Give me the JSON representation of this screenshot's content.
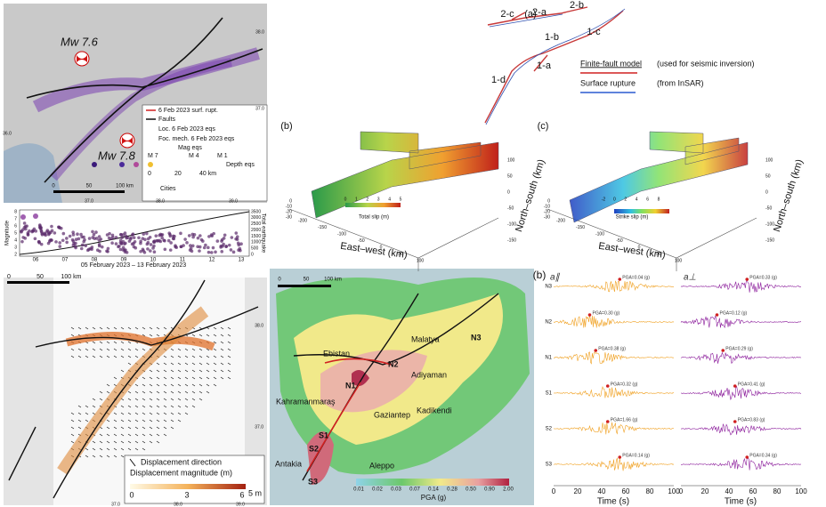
{
  "overview_map": {
    "events": [
      "Mw 7.6",
      "Mw 7.8"
    ],
    "legend": [
      "6 Feb 2023 surf. rupt.",
      "Faults",
      "Loc. 6 Feb 2023 eqs",
      "Foc. mech. 6 Feb 2023 eqs",
      "Mag eqs",
      "M 7",
      "M 4",
      "M 1",
      "Depth eqs",
      "0",
      "20",
      "40 km",
      "Cities"
    ],
    "scale": [
      "0",
      "50",
      "100 km"
    ],
    "coords": [
      "38.0",
      "37.0",
      "36.0",
      "37.0",
      "38.0",
      "39.0"
    ]
  },
  "timeline": {
    "y_label": "Magnitude",
    "y2_label": "Total earthquake",
    "yticks": [
      "8",
      "7",
      "6",
      "5",
      "4",
      "3",
      "2"
    ],
    "y2ticks": [
      "3500",
      "3000",
      "2500",
      "2000",
      "1500",
      "1000",
      "500",
      "0"
    ],
    "xticks": [
      "06",
      "07",
      "08",
      "09",
      "10",
      "11",
      "12",
      "13"
    ],
    "caption": "05 February 2023 – 13 February 2023"
  },
  "displacement_map": {
    "scale": [
      "0",
      "50",
      "100 km"
    ],
    "legend_direction": "Displacement direction",
    "legend_magnitude": "Displacement magnitude (m)",
    "colorbar": [
      "0",
      "3",
      "6"
    ],
    "arrow_scale": "5 m",
    "coords": [
      "38.0",
      "37.0",
      "37.0",
      "38.0",
      "39.0"
    ]
  },
  "pga_map": {
    "scale": [
      "0",
      "50",
      "100 km"
    ],
    "places": [
      "Ebistan",
      "Malatya",
      "N3",
      "N2",
      "N1",
      "Adiyaman",
      "Kahramanmaraş",
      "Gaziantep",
      "Kadikendi",
      "S1",
      "S2",
      "S3",
      "Antakia",
      "Aleppo"
    ],
    "colorbar": [
      "0.01",
      "0.02",
      "0.03",
      "0.07",
      "0.14",
      "0.28",
      "0.50",
      "0.90",
      "2.00"
    ],
    "colorbar_label": "PGA (g)"
  },
  "fault_model": {
    "panel": "(a)",
    "segments": [
      "2-c",
      "2-a",
      "2-b",
      "1-b",
      "1-c",
      "1-a",
      "1-d"
    ],
    "legend": [
      "Finite-fault model",
      "(used for seismic inversion)",
      "Surface rupture",
      "(from InSAR)"
    ]
  },
  "slip_total": {
    "panel": "(b)",
    "colorbar_label": "Total slip (m)",
    "colorbar": [
      "0",
      "1",
      "2",
      "3",
      "4",
      "5"
    ],
    "x_label": "East–west (km)",
    "y_label": "North–south (km)",
    "xticks": [
      "-200",
      "-150",
      "-100",
      "-50",
      "0",
      "50",
      "100"
    ],
    "yticks": [
      "100",
      "50",
      "0",
      "-50",
      "-100",
      "-150"
    ],
    "zticks": [
      "0",
      "-10",
      "-20",
      "-30"
    ]
  },
  "slip_strike": {
    "panel": "(c)",
    "colorbar_label": "Strike slip (m)",
    "colorbar": [
      "-2",
      "0",
      "2",
      "4",
      "6",
      "8"
    ],
    "x_label": "East–west (km)",
    "y_label": "North–south (km)",
    "xticks": [
      "-200",
      "-150",
      "-100",
      "-50",
      "0",
      "50",
      "100"
    ],
    "yticks": [
      "100",
      "50",
      "0",
      "-50",
      "-100",
      "-150"
    ],
    "zticks": [
      "0",
      "-10",
      "-20",
      "-30"
    ]
  },
  "waveforms": {
    "panel": "(b)",
    "components": [
      "a∥",
      "a⊥"
    ],
    "stations": [
      "N3",
      "N2",
      "N1",
      "S1",
      "S2",
      "S3"
    ],
    "pga_parallel": [
      "PGA=0.04 (g)",
      "PGA=0.30 (g)",
      "PGA=0.38 (g)",
      "PGA=0.32 (g)",
      "PGA=1.66 (g)",
      "PGA=0.14 (g)"
    ],
    "pga_perpendicular": [
      "PGA=0.33 (g)",
      "PGA=0.12 (g)",
      "PGA=0.29 (g)",
      "PGA=0.41 (g)",
      "PGA=0.83 (g)",
      "PGA=0.34 (g)"
    ],
    "xticks": [
      "0",
      "20",
      "40",
      "60",
      "80",
      "100"
    ],
    "x_label": "Time (s)"
  }
}
